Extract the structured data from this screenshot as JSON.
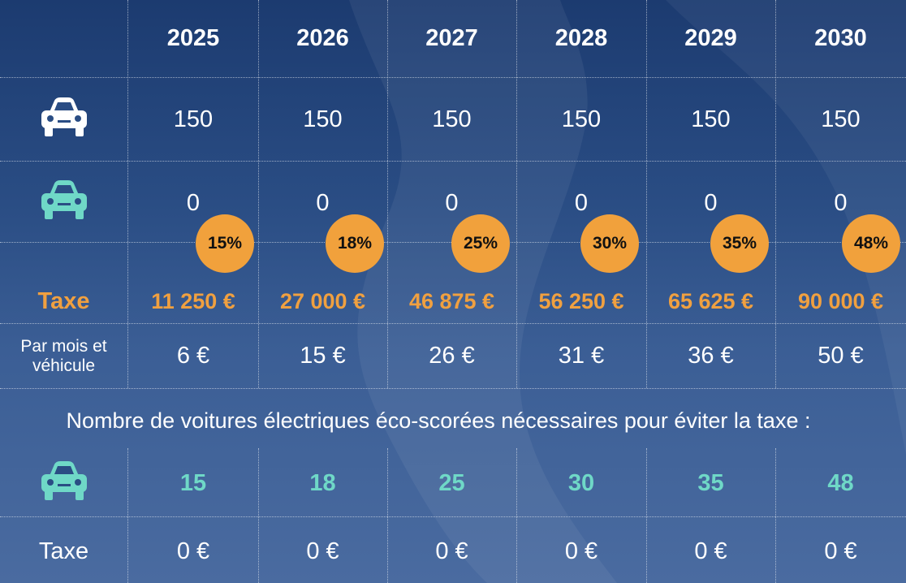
{
  "years": [
    "2025",
    "2026",
    "2027",
    "2028",
    "2029",
    "2030"
  ],
  "rows": {
    "combustion_cars": {
      "icon": "white-car-icon",
      "values": [
        "150",
        "150",
        "150",
        "150",
        "150",
        "150"
      ]
    },
    "electric_cars": {
      "icon": "teal-car-icon",
      "values": [
        "0",
        "0",
        "0",
        "0",
        "0",
        "0"
      ]
    },
    "percentages": [
      "15%",
      "18%",
      "25%",
      "30%",
      "35%",
      "48%"
    ],
    "tax": {
      "label": "Taxe",
      "values": [
        "11 250 €",
        "27 000 €",
        "46 875 €",
        "56 250 €",
        "65 625 €",
        "90 000 €"
      ]
    },
    "per_month": {
      "label": "Par mois et véhicule",
      "values": [
        "6 €",
        "15 €",
        "26 €",
        "31 €",
        "36 €",
        "50 €"
      ]
    }
  },
  "question": "Nombre de voitures électriques éco-scorées nécessaires pour éviter la taxe :",
  "scenario": {
    "electric_cars": {
      "icon": "teal-car-icon",
      "values": [
        "15",
        "18",
        "25",
        "30",
        "35",
        "48"
      ]
    },
    "tax": {
      "label": "Taxe",
      "values": [
        "0 €",
        "0 €",
        "0 €",
        "0 €",
        "0 €",
        "0 €"
      ]
    }
  },
  "colors": {
    "accent_orange": "#f0a040",
    "teal": "#6fd8c7",
    "badge": "#f1a13c",
    "background": "#2a4d84"
  }
}
